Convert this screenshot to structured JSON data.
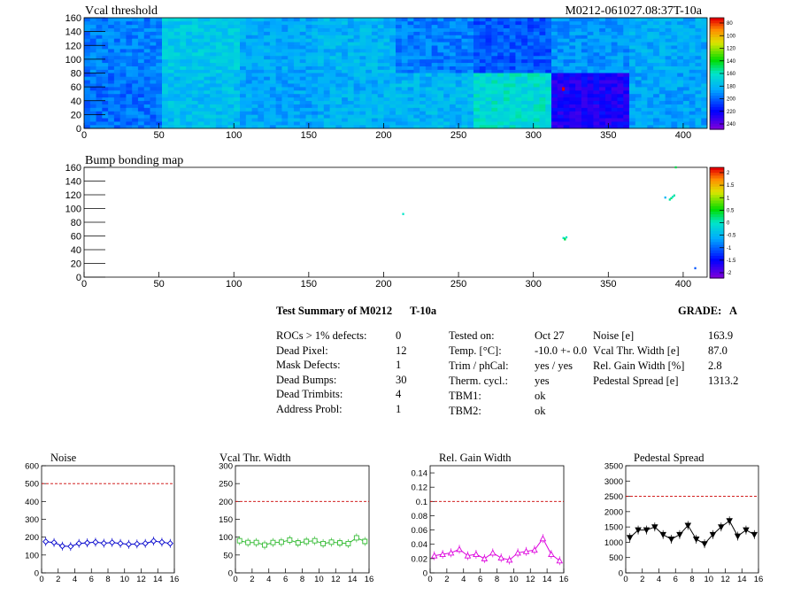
{
  "header": {
    "module_id": "M0212-061027.08:37T-10a"
  },
  "chart_data": [
    {
      "id": "vcal_map",
      "type": "heatmap",
      "title": "Vcal threshold",
      "xlim": [
        0,
        416
      ],
      "ylim": [
        0,
        160
      ],
      "xticks": [
        0,
        50,
        100,
        150,
        200,
        250,
        300,
        350,
        400
      ],
      "yticks": [
        0,
        20,
        40,
        60,
        80,
        100,
        120,
        140,
        160
      ],
      "zlim": [
        70,
        250
      ],
      "zticks": [
        80,
        100,
        120,
        140,
        160,
        180,
        200,
        220,
        240
      ],
      "roc_levels": [
        [
          0.3,
          0.42,
          0.36,
          0.38,
          0.3,
          0.25,
          0.33,
          0.36
        ],
        [
          0.28,
          0.4,
          0.35,
          0.37,
          0.38,
          0.47,
          0.12,
          0.35
        ]
      ],
      "hotspot": {
        "x": 320,
        "y": 57
      }
    },
    {
      "id": "bump_map",
      "type": "scatter",
      "title": "Bump bonding map",
      "xlim": [
        0,
        416
      ],
      "ylim": [
        0,
        160
      ],
      "xticks": [
        0,
        50,
        100,
        150,
        200,
        250,
        300,
        350,
        400
      ],
      "yticks": [
        0,
        20,
        40,
        60,
        80,
        100,
        120,
        140,
        160
      ],
      "zlim": [
        -2,
        2
      ],
      "zticks": [
        "2",
        "1.5",
        "1",
        "0.5",
        "0",
        "-0.5",
        "-1",
        "-1.5",
        "-2"
      ],
      "points": [
        {
          "x": 213,
          "y": 92,
          "z": 0
        },
        {
          "x": 320,
          "y": 57,
          "z": 0
        },
        {
          "x": 321,
          "y": 56,
          "z": 0.2
        },
        {
          "x": 322,
          "y": 58,
          "z": 0
        },
        {
          "x": 321,
          "y": 55,
          "z": 0.3
        },
        {
          "x": 388,
          "y": 116,
          "z": -0.5
        },
        {
          "x": 391,
          "y": 113,
          "z": 0.1
        },
        {
          "x": 392,
          "y": 115,
          "z": 0.2
        },
        {
          "x": 393,
          "y": 117,
          "z": 0
        },
        {
          "x": 394,
          "y": 119,
          "z": 0.1
        },
        {
          "x": 395,
          "y": 160,
          "z": 0.3
        },
        {
          "x": 408,
          "y": 13,
          "z": -1
        }
      ]
    },
    {
      "id": "noise",
      "type": "line",
      "title": "Noise",
      "xlim": [
        0,
        16
      ],
      "ylim": [
        0,
        600
      ],
      "xticks": [
        0,
        2,
        4,
        6,
        8,
        10,
        12,
        14,
        16
      ],
      "yticks": [
        0,
        100,
        200,
        300,
        400,
        500,
        600
      ],
      "limit": 500,
      "color": "#0000cc",
      "marker": "diamond",
      "x": [
        0.5,
        1.5,
        2.5,
        3.5,
        4.5,
        5.5,
        6.5,
        7.5,
        8.5,
        9.5,
        10.5,
        11.5,
        12.5,
        13.5,
        14.5,
        15.5
      ],
      "values": [
        175,
        170,
        150,
        148,
        165,
        168,
        172,
        166,
        170,
        165,
        160,
        162,
        165,
        178,
        172,
        165
      ]
    },
    {
      "id": "vcal_width",
      "type": "line",
      "title": "Vcal Thr. Width",
      "xlim": [
        0,
        16
      ],
      "ylim": [
        0,
        300
      ],
      "xticks": [
        0,
        2,
        4,
        6,
        8,
        10,
        12,
        14,
        16
      ],
      "yticks": [
        0,
        50,
        100,
        150,
        200,
        250,
        300
      ],
      "limit": 200,
      "color": "#33bb33",
      "marker": "square",
      "x": [
        0.5,
        1.5,
        2.5,
        3.5,
        4.5,
        5.5,
        6.5,
        7.5,
        8.5,
        9.5,
        10.5,
        11.5,
        12.5,
        13.5,
        14.5,
        15.5
      ],
      "values": [
        90,
        85,
        85,
        78,
        85,
        86,
        92,
        84,
        88,
        90,
        82,
        86,
        84,
        82,
        98,
        88
      ]
    },
    {
      "id": "gain_width",
      "type": "line",
      "title": "Rel. Gain Width",
      "xlim": [
        0,
        16
      ],
      "ylim": [
        0,
        0.15
      ],
      "xticks": [
        0,
        2,
        4,
        6,
        8,
        10,
        12,
        14,
        16
      ],
      "yticks": [
        "0",
        "0.02",
        "0.04",
        "0.06",
        "0.08",
        "0.1",
        "0.12",
        "0.14"
      ],
      "limit": 0.1,
      "color": "#dd00dd",
      "marker": "triangle",
      "x": [
        0.5,
        1.5,
        2.5,
        3.5,
        4.5,
        5.5,
        6.5,
        7.5,
        8.5,
        9.5,
        10.5,
        11.5,
        12.5,
        13.5,
        14.5,
        15.5
      ],
      "values": [
        0.024,
        0.026,
        0.028,
        0.033,
        0.024,
        0.026,
        0.02,
        0.028,
        0.021,
        0.018,
        0.028,
        0.03,
        0.032,
        0.048,
        0.026,
        0.017
      ]
    },
    {
      "id": "pedestal_spread",
      "type": "line",
      "title": "Pedestal Spread",
      "xlim": [
        0,
        16
      ],
      "ylim": [
        0,
        3500
      ],
      "xticks": [
        0,
        2,
        4,
        6,
        8,
        10,
        12,
        14,
        16
      ],
      "yticks": [
        0,
        500,
        1000,
        1500,
        2000,
        2500,
        3000,
        3500
      ],
      "limit": 2500,
      "color": "#000000",
      "marker": "triangle-down",
      "x": [
        0.5,
        1.5,
        2.5,
        3.5,
        4.5,
        5.5,
        6.5,
        7.5,
        8.5,
        9.5,
        10.5,
        11.5,
        12.5,
        13.5,
        14.5,
        15.5
      ],
      "values": [
        1150,
        1400,
        1400,
        1500,
        1250,
        1100,
        1250,
        1550,
        1100,
        950,
        1250,
        1500,
        1700,
        1200,
        1400,
        1250
      ]
    }
  ],
  "summary": {
    "title": "Test Summary of M0212",
    "temp_tag": "T-10a",
    "grade_label": "GRADE:",
    "grade_value": "A",
    "defects": [
      {
        "label": "ROCs > 1% defects:",
        "value": "0"
      },
      {
        "label": "Dead Pixel:",
        "value": "12"
      },
      {
        "label": "Mask Defects:",
        "value": "1"
      },
      {
        "label": "Dead Bumps:",
        "value": "30"
      },
      {
        "label": "Dead Trimbits:",
        "value": "4"
      },
      {
        "label": "Address Probl:",
        "value": "1"
      }
    ],
    "conditions": [
      {
        "label": "Tested on:",
        "value": "Oct 27"
      },
      {
        "label": "Temp. [°C]:",
        "value": "-10.0 +- 0.0"
      },
      {
        "label": "Trim / phCal:",
        "value": "yes / yes"
      },
      {
        "label": "Therm. cycl.:",
        "value": "yes"
      },
      {
        "label": "TBM1:",
        "value": "ok"
      },
      {
        "label": "TBM2:",
        "value": "ok"
      }
    ],
    "performance": [
      {
        "label": "Noise [e]",
        "value": "163.9"
      },
      {
        "label": "Vcal Thr. Width [e]",
        "value": "87.0"
      },
      {
        "label": "Rel. Gain Width [%]",
        "value": "2.8"
      },
      {
        "label": "Pedestal Spread [e]",
        "value": "1313.2"
      }
    ]
  }
}
